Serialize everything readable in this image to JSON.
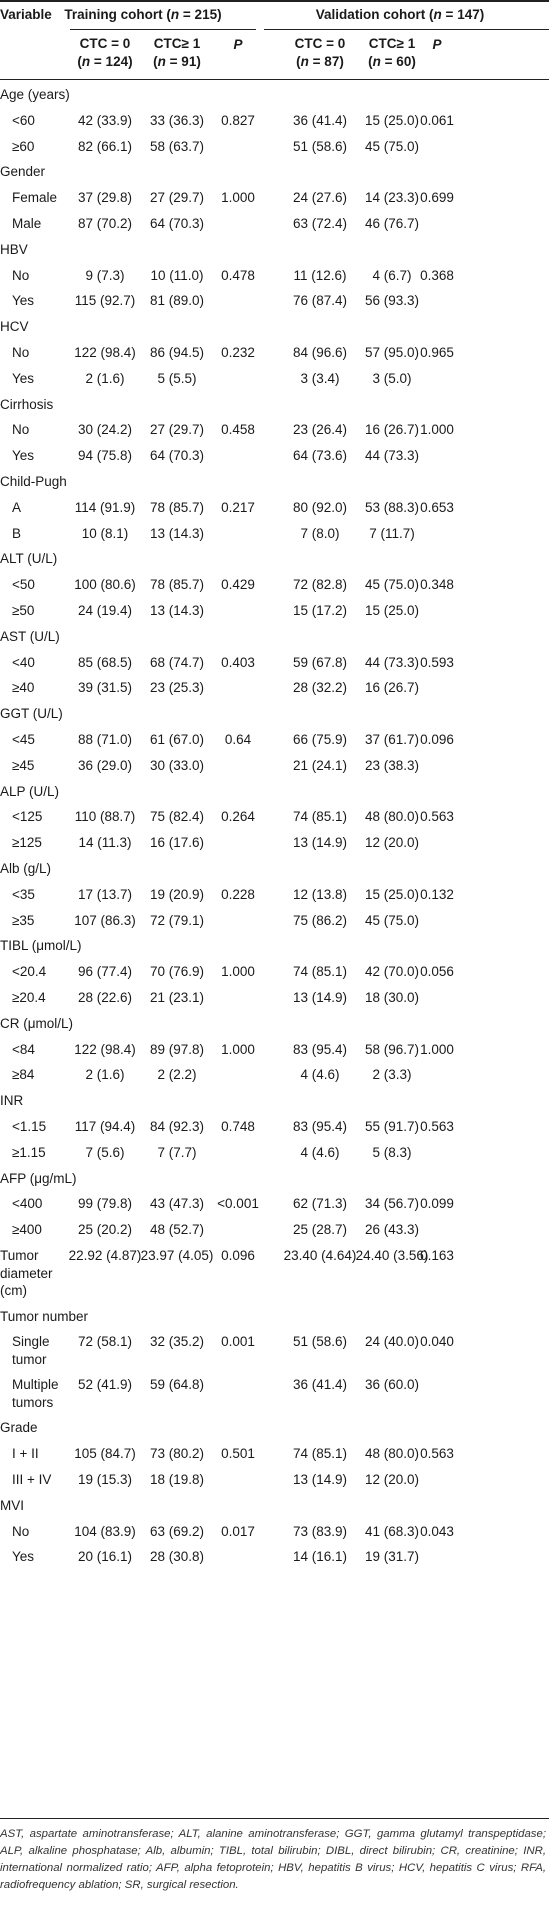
{
  "header": {
    "variable": "Variable",
    "training_pre": "Training cohort (",
    "training_n": "n",
    "training_post": " = 215)",
    "validation_pre": "Validation cohort (",
    "validation_n": "n",
    "validation_post": " = 147)",
    "sub": [
      {
        "l1": "CTC = 0",
        "l2pre": "(",
        "l2n": "n",
        "l2post": " = 124)"
      },
      {
        "l1": "CTC≥ 1",
        "l2pre": "(",
        "l2n": "n",
        "l2post": " = 91)"
      },
      {
        "l1": "P",
        "l2pre": "",
        "l2n": "",
        "l2post": ""
      },
      {
        "l1": "CTC = 0",
        "l2pre": "(",
        "l2n": "n",
        "l2post": " = 87)"
      },
      {
        "l1": "CTC≥ 1",
        "l2pre": "(",
        "l2n": "n",
        "l2post": " = 60)"
      },
      {
        "l1": "P",
        "l2pre": "",
        "l2n": "",
        "l2post": ""
      }
    ]
  },
  "rows": [
    {
      "type": "cat",
      "label": "Age (years)"
    },
    {
      "type": "data",
      "label": "<60",
      "v": [
        "42 (33.9)",
        "33 (36.3)",
        "0.827",
        "36 (41.4)",
        "15 (25.0)",
        "0.061"
      ]
    },
    {
      "type": "data",
      "label": "≥60",
      "v": [
        "82 (66.1)",
        "58 (63.7)",
        "",
        "51 (58.6)",
        "45 (75.0)",
        ""
      ]
    },
    {
      "type": "cat",
      "label": "Gender"
    },
    {
      "type": "data",
      "label": "Female",
      "v": [
        "37 (29.8)",
        "27 (29.7)",
        "1.000",
        "24 (27.6)",
        "14 (23.3)",
        "0.699"
      ]
    },
    {
      "type": "data",
      "label": "Male",
      "v": [
        "87 (70.2)",
        "64 (70.3)",
        "",
        "63 (72.4)",
        "46 (76.7)",
        ""
      ]
    },
    {
      "type": "cat",
      "label": "HBV"
    },
    {
      "type": "data",
      "label": "No",
      "v": [
        "9 (7.3)",
        "10 (11.0)",
        "0.478",
        "11 (12.6)",
        "4 (6.7)",
        "0.368"
      ]
    },
    {
      "type": "data",
      "label": "Yes",
      "v": [
        "115 (92.7)",
        "81 (89.0)",
        "",
        "76 (87.4)",
        "56 (93.3)",
        ""
      ]
    },
    {
      "type": "cat",
      "label": "HCV"
    },
    {
      "type": "data",
      "label": "No",
      "v": [
        "122 (98.4)",
        "86 (94.5)",
        "0.232",
        "84 (96.6)",
        "57 (95.0)",
        "0.965"
      ]
    },
    {
      "type": "data",
      "label": "Yes",
      "v": [
        "2 (1.6)",
        "5 (5.5)",
        "",
        "3 (3.4)",
        "3 (5.0)",
        ""
      ]
    },
    {
      "type": "cat",
      "label": "Cirrhosis"
    },
    {
      "type": "data",
      "label": "No",
      "v": [
        "30 (24.2)",
        "27 (29.7)",
        "0.458",
        "23 (26.4)",
        "16 (26.7)",
        "1.000"
      ]
    },
    {
      "type": "data",
      "label": "Yes",
      "v": [
        "94 (75.8)",
        "64 (70.3)",
        "",
        "64 (73.6)",
        "44 (73.3)",
        ""
      ]
    },
    {
      "type": "cat",
      "label": "Child-Pugh"
    },
    {
      "type": "data",
      "label": "A",
      "v": [
        "114 (91.9)",
        "78 (85.7)",
        "0.217",
        "80 (92.0)",
        "53 (88.3)",
        "0.653"
      ]
    },
    {
      "type": "data",
      "label": "B",
      "v": [
        "10 (8.1)",
        "13 (14.3)",
        "",
        "7 (8.0)",
        "7 (11.7)",
        ""
      ]
    },
    {
      "type": "cat",
      "label": "ALT (U/L)"
    },
    {
      "type": "data",
      "label": "<50",
      "v": [
        "100 (80.6)",
        "78 (85.7)",
        "0.429",
        "72 (82.8)",
        "45 (75.0)",
        "0.348"
      ]
    },
    {
      "type": "data",
      "label": "≥50",
      "v": [
        "24 (19.4)",
        "13 (14.3)",
        "",
        "15 (17.2)",
        "15 (25.0)",
        ""
      ]
    },
    {
      "type": "cat",
      "label": "AST (U/L)"
    },
    {
      "type": "data",
      "label": "<40",
      "v": [
        "85 (68.5)",
        "68 (74.7)",
        "0.403",
        "59 (67.8)",
        "44 (73.3)",
        "0.593"
      ]
    },
    {
      "type": "data",
      "label": "≥40",
      "v": [
        "39 (31.5)",
        "23 (25.3)",
        "",
        "28 (32.2)",
        "16 (26.7)",
        ""
      ]
    },
    {
      "type": "cat",
      "label": "GGT (U/L)"
    },
    {
      "type": "data",
      "label": "<45",
      "v": [
        "88 (71.0)",
        "61 (67.0)",
        "0.64",
        "66 (75.9)",
        "37 (61.7)",
        "0.096"
      ]
    },
    {
      "type": "data",
      "label": "≥45",
      "v": [
        "36 (29.0)",
        "30 (33.0)",
        "",
        "21 (24.1)",
        "23 (38.3)",
        ""
      ]
    },
    {
      "type": "cat",
      "label": "ALP (U/L)"
    },
    {
      "type": "data",
      "label": "<125",
      "v": [
        "110 (88.7)",
        "75 (82.4)",
        "0.264",
        "74 (85.1)",
        "48 (80.0)",
        "0.563"
      ]
    },
    {
      "type": "data",
      "label": "≥125",
      "v": [
        "14 (11.3)",
        "16 (17.6)",
        "",
        "13 (14.9)",
        "12 (20.0)",
        ""
      ]
    },
    {
      "type": "cat",
      "label": "Alb (g/L)"
    },
    {
      "type": "data",
      "label": "<35",
      "v": [
        "17 (13.7)",
        "19 (20.9)",
        "0.228",
        "12 (13.8)",
        "15 (25.0)",
        "0.132"
      ]
    },
    {
      "type": "data",
      "label": "≥35",
      "v": [
        "107 (86.3)",
        "72 (79.1)",
        "",
        "75 (86.2)",
        "45 (75.0)",
        ""
      ]
    },
    {
      "type": "cat",
      "label": "TIBL (μmol/L)"
    },
    {
      "type": "data",
      "label": "<20.4",
      "v": [
        "96 (77.4)",
        "70 (76.9)",
        "1.000",
        "74 (85.1)",
        "42 (70.0)",
        "0.056"
      ]
    },
    {
      "type": "data",
      "label": "≥20.4",
      "v": [
        "28 (22.6)",
        "21 (23.1)",
        "",
        "13 (14.9)",
        "18 (30.0)",
        ""
      ]
    },
    {
      "type": "cat",
      "label": "CR (μmol/L)"
    },
    {
      "type": "data",
      "label": "<84",
      "v": [
        "122 (98.4)",
        "89 (97.8)",
        "1.000",
        "83 (95.4)",
        "58 (96.7)",
        "1.000"
      ]
    },
    {
      "type": "data",
      "label": "≥84",
      "v": [
        "2 (1.6)",
        "2 (2.2)",
        "",
        "4 (4.6)",
        "2 (3.3)",
        ""
      ]
    },
    {
      "type": "cat",
      "label": "INR"
    },
    {
      "type": "data",
      "label": "<1.15",
      "v": [
        "117 (94.4)",
        "84 (92.3)",
        "0.748",
        "83 (95.4)",
        "55 (91.7)",
        "0.563"
      ]
    },
    {
      "type": "data",
      "label": "≥1.15",
      "v": [
        "7 (5.6)",
        "7 (7.7)",
        "",
        "4 (4.6)",
        "5 (8.3)",
        ""
      ]
    },
    {
      "type": "cat",
      "label": "AFP (μg/mL)"
    },
    {
      "type": "data",
      "label": "<400",
      "v": [
        "99 (79.8)",
        "43 (47.3)",
        "<0.001",
        "62 (71.3)",
        "34 (56.7)",
        "0.099"
      ]
    },
    {
      "type": "data",
      "label": "≥400",
      "v": [
        "25 (20.2)",
        "48 (52.7)",
        "",
        "25 (28.7)",
        "26 (43.3)",
        ""
      ]
    },
    {
      "type": "multi",
      "lines": [
        "Tumor",
        "diameter",
        "(cm)"
      ],
      "v": [
        "22.92 (4.87)",
        "23.97 (4.05)",
        "0.096",
        "23.40 (4.64)",
        "24.40 (3.56)",
        "0.163"
      ]
    },
    {
      "type": "cat",
      "label": "Tumor number"
    },
    {
      "type": "multi_sub",
      "lines": [
        "Single",
        "tumor"
      ],
      "v": [
        "72 (58.1)",
        "32 (35.2)",
        "0.001",
        "51 (58.6)",
        "24 (40.0)",
        "0.040"
      ]
    },
    {
      "type": "multi_sub",
      "lines": [
        "Multiple",
        "tumors"
      ],
      "v": [
        "52 (41.9)",
        "59 (64.8)",
        "",
        "36 (41.4)",
        "36 (60.0)",
        ""
      ]
    },
    {
      "type": "cat",
      "label": "Grade"
    },
    {
      "type": "data",
      "label": "I + II",
      "v": [
        "105 (84.7)",
        "73 (80.2)",
        "0.501",
        "74 (85.1)",
        "48 (80.0)",
        "0.563"
      ]
    },
    {
      "type": "data",
      "label": "III + IV",
      "v": [
        "19 (15.3)",
        "18 (19.8)",
        "",
        "13 (14.9)",
        "12 (20.0)",
        ""
      ]
    },
    {
      "type": "cat",
      "label": "MVI"
    },
    {
      "type": "data",
      "label": "No",
      "v": [
        "104 (83.9)",
        "63 (69.2)",
        "0.017",
        "73 (83.9)",
        "41 (68.3)",
        "0.043"
      ]
    },
    {
      "type": "data",
      "label": "Yes",
      "v": [
        "20 (16.1)",
        "28 (30.8)",
        "",
        "14 (16.1)",
        "19 (31.7)",
        ""
      ]
    }
  ],
  "footnote": "AST, aspartate aminotransferase; ALT, alanine aminotransferase; GGT, gamma glutamyl transpeptidase; ALP, alkaline phosphatase; Alb, albumin; TIBL, total bilirubin; DIBL, direct bilirubin; CR, creatinine; INR, international normalized ratio; AFP, alpha fetoprotein; HBV, hepatitis B virus; HCV, hepatitis C virus; RFA, radiofrequency ablation; SR, surgical resection."
}
